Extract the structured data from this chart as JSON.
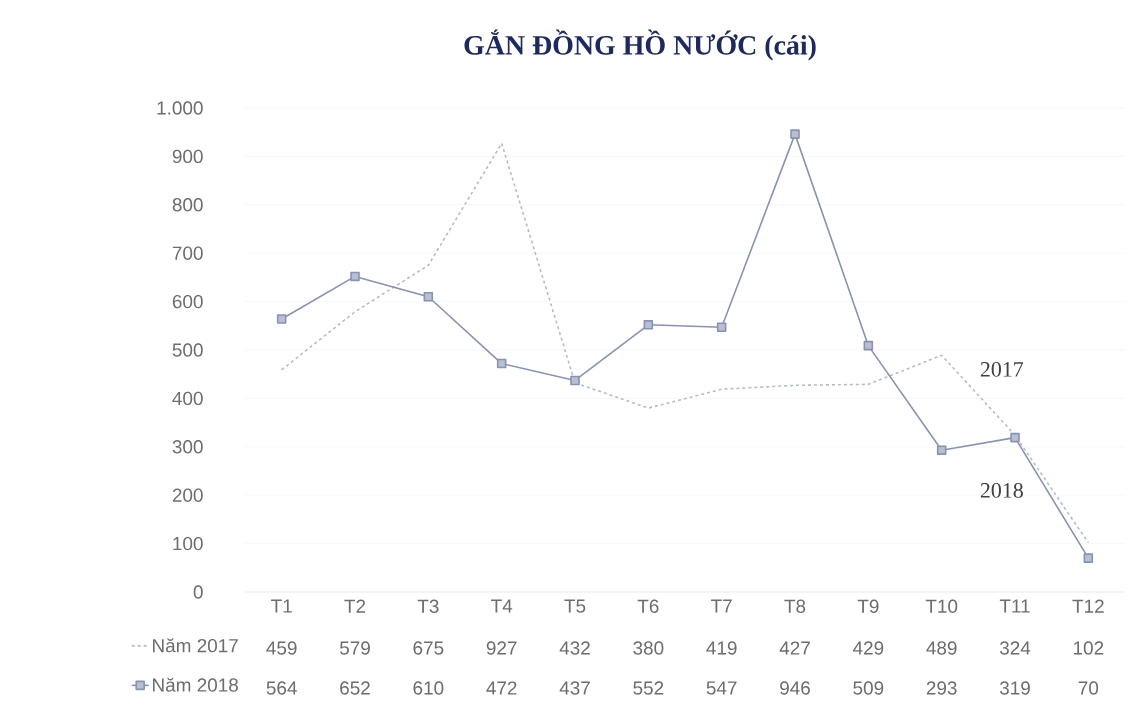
{
  "chart_data": {
    "type": "line",
    "title": "GẮN ĐỒNG HỒ NƯỚC (cái)",
    "categories": [
      "T1",
      "T2",
      "T3",
      "T4",
      "T5",
      "T6",
      "T7",
      "T8",
      "T9",
      "T10",
      "T11",
      "T12"
    ],
    "series": [
      {
        "name": "Năm 2017",
        "color": "#b4bccb",
        "line_style": "dashed",
        "marker": "none",
        "values": [
          459,
          579,
          675,
          927,
          432,
          380,
          419,
          427,
          429,
          489,
          324,
          102
        ]
      },
      {
        "name": "Năm 2018",
        "color": "#8a92b2",
        "line_style": "solid",
        "marker": "square",
        "values": [
          564,
          652,
          610,
          472,
          437,
          552,
          547,
          946,
          509,
          293,
          319,
          70
        ]
      }
    ],
    "ylim": [
      0,
      1000
    ],
    "yticks": [
      0,
      100,
      200,
      300,
      400,
      500,
      600,
      700,
      800,
      900,
      {
        "value": 1000,
        "label": "1.000"
      }
    ],
    "grid": "y",
    "legend": "bottom",
    "data_labels": true,
    "annotations": [
      "2017",
      "2018"
    ]
  }
}
